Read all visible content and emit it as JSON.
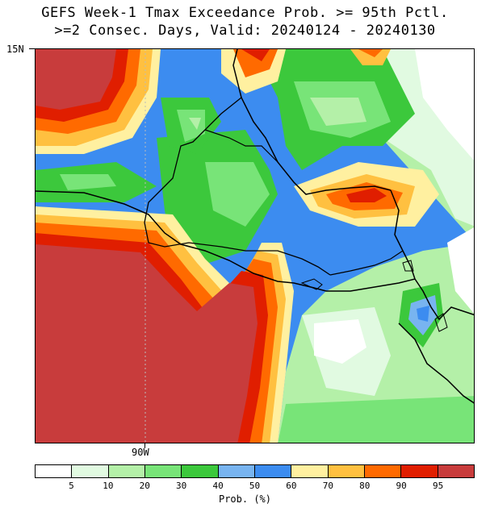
{
  "title_line1": "GEFS Week-1 Tmax Exceedance Prob. >= 95th Pctl.",
  "title_line2": ">=2 Consec. Days, Valid: 20240124 - 20240130",
  "lat_label": "15N",
  "lon_label": "90W",
  "colorbar": {
    "title": "Prob. (%)",
    "colors": [
      "#ffffff",
      "#e1fae1",
      "#b4f0a8",
      "#78e478",
      "#3cc83c",
      "#78b4f0",
      "#3c8cf0",
      "#fff0a0",
      "#ffc040",
      "#ff6a00",
      "#e01e00",
      "#c83c3c"
    ],
    "tick_labels": [
      "5",
      "10",
      "20",
      "30",
      "40",
      "50",
      "60",
      "70",
      "80",
      "90",
      "95"
    ]
  }
}
